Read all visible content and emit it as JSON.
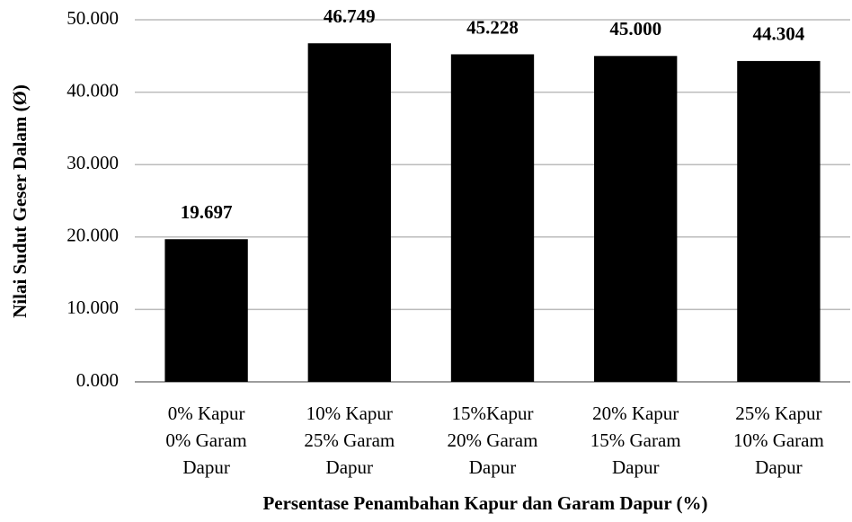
{
  "chart_data": {
    "type": "bar",
    "x_label": "Persentase Penambahan Kapur dan Garam Dapur (%)",
    "y_label": "Nilai Sudut Geser Dalam (Ø)",
    "categories": [
      "0% Kapur\n0% Garam\nDapur",
      "10% Kapur\n25% Garam\nDapur",
      "15%Kapur\n20% Garam\nDapur",
      "20% Kapur\n15% Garam\nDapur",
      "25% Kapur\n10% Garam\nDapur"
    ],
    "values": [
      19.697,
      46.749,
      45.228,
      45.0,
      44.304
    ],
    "value_labels": [
      "19.697",
      "46.749",
      "45.228",
      "45.000",
      "44.304"
    ],
    "color": "#000000",
    "ylim": [
      0,
      50
    ],
    "yticks": [
      {
        "value": 0,
        "label": "0.000"
      },
      {
        "value": 10,
        "label": "10.000"
      },
      {
        "value": 20,
        "label": "20.000"
      },
      {
        "value": 30,
        "label": "30.000"
      },
      {
        "value": 40,
        "label": "40.000"
      },
      {
        "value": 50,
        "label": "50.000"
      }
    ],
    "grid": true
  }
}
